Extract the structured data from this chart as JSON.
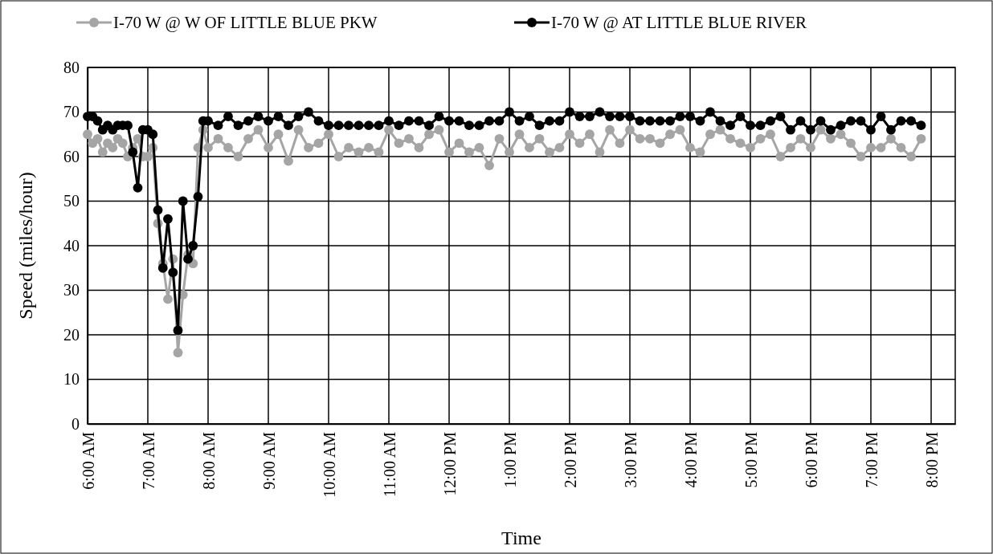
{
  "chart_data": {
    "type": "line",
    "xlabel": "Time",
    "ylabel": "Speed (miles/hour)",
    "x": [
      6,
      6.083,
      6.167,
      6.25,
      6.333,
      6.417,
      6.5,
      6.583,
      6.667,
      6.75,
      6.833,
      6.917,
      7,
      7.083,
      7.167,
      7.25,
      7.333,
      7.417,
      7.5,
      7.583,
      7.667,
      7.75,
      7.833,
      7.917,
      8,
      8.167,
      8.333,
      8.5,
      8.667,
      8.833,
      9,
      9.167,
      9.333,
      9.5,
      9.667,
      9.833,
      10,
      10.167,
      10.333,
      10.5,
      10.667,
      10.833,
      11,
      11.167,
      11.333,
      11.5,
      11.667,
      11.833,
      12,
      12.167,
      12.333,
      12.5,
      12.667,
      12.833,
      13,
      13.167,
      13.333,
      13.5,
      13.667,
      13.833,
      14,
      14.167,
      14.333,
      14.5,
      14.667,
      14.833,
      15,
      15.167,
      15.333,
      15.5,
      15.667,
      15.833,
      16,
      16.167,
      16.333,
      16.5,
      16.667,
      16.833,
      17,
      17.167,
      17.333,
      17.5,
      17.667,
      17.833,
      18,
      18.167,
      18.333,
      18.5,
      18.667,
      18.833,
      19,
      19.167,
      19.333,
      19.5,
      19.667,
      19.833
    ],
    "series": [
      {
        "name": "I-70 W @ W OF LITTLE BLUE PKW",
        "color": "#a5a5a5",
        "values": [
          65,
          63,
          64,
          61,
          63,
          62,
          64,
          63,
          60,
          62,
          64,
          60,
          60,
          62,
          45,
          36,
          28,
          37,
          16,
          29,
          38,
          36,
          62,
          66,
          62,
          64,
          62,
          60,
          64,
          66,
          62,
          65,
          59,
          66,
          62,
          63,
          65,
          60,
          62,
          61,
          62,
          61,
          66,
          63,
          64,
          62,
          65,
          66,
          61,
          63,
          61,
          62,
          58,
          64,
          61,
          65,
          62,
          64,
          61,
          62,
          65,
          63,
          65,
          61,
          66,
          63,
          66,
          64,
          64,
          63,
          65,
          66,
          62,
          61,
          65,
          66,
          64,
          63,
          62,
          64,
          65,
          60,
          62,
          64,
          62,
          66,
          64,
          65,
          63,
          60,
          62,
          62,
          64,
          62,
          60,
          64
        ]
      },
      {
        "name": "I-70 W @ AT LITTLE BLUE RIVER",
        "color": "#000000",
        "values": [
          69,
          69,
          68,
          66,
          67,
          66,
          67,
          67,
          67,
          61,
          53,
          66,
          66,
          65,
          48,
          35,
          46,
          34,
          21,
          50,
          37,
          40,
          51,
          68,
          68,
          67,
          69,
          67,
          68,
          69,
          68,
          69,
          67,
          69,
          70,
          68,
          67,
          67,
          67,
          67,
          67,
          67,
          68,
          67,
          68,
          68,
          67,
          69,
          68,
          68,
          67,
          67,
          68,
          68,
          70,
          68,
          69,
          67,
          68,
          68,
          70,
          69,
          69,
          70,
          69,
          69,
          69,
          68,
          68,
          68,
          68,
          69,
          69,
          68,
          70,
          68,
          67,
          69,
          67,
          67,
          68,
          69,
          66,
          68,
          66,
          68,
          66,
          67,
          68,
          68,
          66,
          69,
          66,
          68,
          68,
          67
        ]
      }
    ],
    "xlim": [
      6,
      20.4
    ],
    "xticks": [
      {
        "value": 6,
        "label": "6:00 AM"
      },
      {
        "value": 7,
        "label": "7:00 AM"
      },
      {
        "value": 8,
        "label": "8:00 AM"
      },
      {
        "value": 9,
        "label": "9:00 AM"
      },
      {
        "value": 10,
        "label": "10:00 AM"
      },
      {
        "value": 11,
        "label": "11:00 AM"
      },
      {
        "value": 12,
        "label": "12:00 PM"
      },
      {
        "value": 13,
        "label": "1:00 PM"
      },
      {
        "value": 14,
        "label": "2:00 PM"
      },
      {
        "value": 15,
        "label": "3:00 PM"
      },
      {
        "value": 16,
        "label": "4:00 PM"
      },
      {
        "value": 17,
        "label": "5:00 PM"
      },
      {
        "value": 18,
        "label": "6:00 PM"
      },
      {
        "value": 19,
        "label": "7:00 PM"
      },
      {
        "value": 20,
        "label": "8:00 PM"
      }
    ],
    "ylim": [
      0,
      80
    ],
    "yticks": [
      0,
      10,
      20,
      30,
      40,
      50,
      60,
      70,
      80
    ],
    "grid": true,
    "legend": "top",
    "marker": "circle",
    "line_style": "solid"
  }
}
